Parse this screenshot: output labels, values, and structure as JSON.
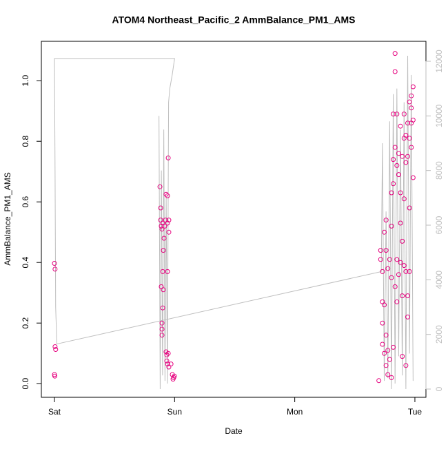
{
  "chart_data": {
    "type": "scatter",
    "title": "ATOM4 Northeast_Pacific_2 AmmBalance_PM1_AMS",
    "xlabel": "Date",
    "ylabel": "AmmBalance_PM1_AMS",
    "xlim": [
      -0.109,
      3.092
    ],
    "ylim": [
      -0.045,
      1.13
    ],
    "y2lim": [
      -302,
      12731
    ],
    "xticks": [
      {
        "value": 0,
        "label": "Sat"
      },
      {
        "value": 1,
        "label": "Sun"
      },
      {
        "value": 2,
        "label": "Mon"
      },
      {
        "value": 3,
        "label": "Tue"
      }
    ],
    "yticks": [
      {
        "value": 0,
        "label": "0.0"
      },
      0.2,
      0.4,
      0.6,
      0.8,
      {
        "value": 1,
        "label": "1.0"
      }
    ],
    "y2ticks": [
      0,
      2000,
      4000,
      6000,
      8000,
      10000,
      12000
    ],
    "series": [
      {
        "color": "#e6007e",
        "x": [
          0.0,
          0.005,
          0.005,
          0.01,
          0.0,
          0.003,
          0.878,
          0.884,
          0.884,
          0.889,
          0.895,
          0.901,
          0.906,
          0.912,
          0.918,
          0.924,
          0.929,
          0.941,
          0.941,
          0.952,
          0.952,
          0.947,
          0.941,
          0.901,
          0.889,
          0.906,
          0.901,
          0.895,
          0.895,
          0.895,
          0.929,
          0.935,
          0.935,
          0.941,
          0.952,
          0.97,
          0.981,
          0.993,
          0.998,
          0.987,
          0.947,
          2.7,
          2.715,
          2.715,
          2.73,
          2.73,
          2.73,
          2.73,
          2.745,
          2.745,
          2.745,
          2.76,
          2.76,
          2.76,
          2.76,
          2.775,
          2.775,
          2.775,
          2.79,
          2.79,
          2.805,
          2.805,
          2.805,
          2.805,
          2.82,
          2.82,
          2.82,
          2.82,
          2.835,
          2.835,
          2.835,
          2.835,
          2.85,
          2.85,
          2.85,
          2.85,
          2.865,
          2.865,
          2.865,
          2.88,
          2.88,
          2.88,
          2.88,
          2.895,
          2.895,
          2.895,
          2.895,
          2.91,
          2.91,
          2.91,
          2.91,
          2.925,
          2.925,
          2.925,
          2.925,
          2.94,
          2.94,
          2.94,
          2.94,
          2.955,
          2.955,
          2.955,
          2.955,
          2.97,
          2.97,
          2.97,
          2.97,
          2.985,
          2.985,
          2.985
        ],
        "values": [
          0.397,
          0.378,
          0.122,
          0.113,
          0.03,
          0.025,
          0.65,
          0.58,
          0.54,
          0.52,
          0.51,
          0.53,
          0.44,
          0.48,
          0.52,
          0.54,
          0.625,
          0.62,
          0.53,
          0.54,
          0.5,
          0.745,
          0.37,
          0.37,
          0.32,
          0.31,
          0.25,
          0.2,
          0.18,
          0.16,
          0.105,
          0.095,
          0.075,
          0.065,
          0.055,
          0.065,
          0.03,
          0.02,
          0.025,
          0.015,
          0.1,
          0.01,
          0.44,
          0.41,
          0.37,
          0.27,
          0.2,
          0.13,
          0.5,
          0.26,
          0.1,
          0.54,
          0.44,
          0.16,
          0.06,
          0.38,
          0.11,
          0.03,
          0.41,
          0.08,
          0.63,
          0.52,
          0.35,
          0.02,
          0.89,
          0.74,
          0.66,
          0.12,
          1.09,
          1.03,
          0.78,
          0.32,
          0.89,
          0.72,
          0.41,
          0.27,
          0.76,
          0.69,
          0.36,
          0.85,
          0.63,
          0.53,
          0.4,
          0.75,
          0.47,
          0.29,
          0.09,
          0.89,
          0.81,
          0.61,
          0.39,
          0.82,
          0.73,
          0.37,
          0.06,
          0.86,
          0.75,
          0.29,
          0.22,
          0.93,
          0.81,
          0.58,
          0.37,
          0.95,
          0.91,
          0.86,
          0.78,
          0.98,
          0.87,
          0.68
        ]
      },
      {
        "type": "line",
        "axis": "y2",
        "color": "#bebebe",
        "x": [
          0.87,
          0.88,
          0.89,
          0.9,
          0.91,
          0.92,
          0.93,
          0.94,
          0.95,
          0.96,
          0.98,
          1.0,
          0.0,
          0.005,
          0.01,
          0.02,
          2.72,
          2.73,
          2.745,
          2.76,
          2.775,
          2.79,
          2.805,
          2.82,
          2.835,
          2.85,
          2.865,
          2.88,
          2.895,
          2.91,
          2.925,
          2.94,
          2.955,
          2.97,
          2.985
        ],
        "values": [
          10000,
          0,
          8000,
          500,
          9500,
          300,
          7000,
          200,
          10500,
          11000,
          11500,
          12100,
          12100,
          8000,
          3000,
          1650,
          4300,
          9000,
          300,
          6500,
          400,
          9800,
          0,
          10800,
          200,
          11000,
          1200,
          9500,
          500,
          10500,
          0,
          12200,
          1300,
          11500,
          300
        ]
      }
    ]
  }
}
